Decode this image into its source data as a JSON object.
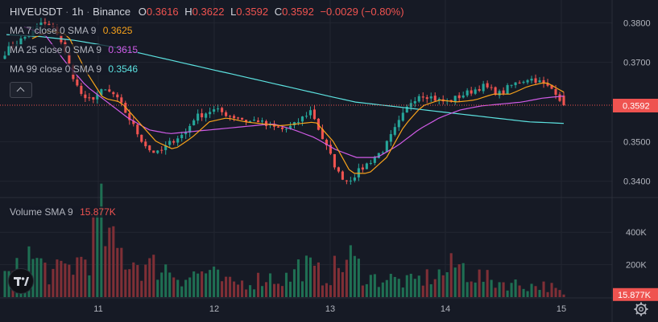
{
  "header": {
    "symbol": "HIVEUSDT",
    "sep1": "·",
    "interval": "1h",
    "sep2": "·",
    "exchange": "Binance",
    "open_label": "O",
    "open_value": "0.3616",
    "high_label": "H",
    "high_value": "0.3622",
    "low_label": "L",
    "low_value": "0.3592",
    "close_label": "C",
    "close_value": "0.3592",
    "change_value": "−0.0029 (−0.80%)"
  },
  "indicators": [
    {
      "label": "MA 7 close 0 SMA 9",
      "value": "0.3625",
      "color": "#F7A21B"
    },
    {
      "label": "MA 25 close 0 SMA 9",
      "value": "0.3615",
      "color": "#D05BE6"
    },
    {
      "label": "MA 99 close 0 SMA 9",
      "value": "0.3546",
      "color": "#5CE2E0"
    }
  ],
  "volume_indicator": {
    "label": "Volume SMA 9",
    "value": "15.877K",
    "color": "#EF5350"
  },
  "colors": {
    "up": "#26A69A",
    "down": "#EF5350",
    "up_volume": "#1F6F53",
    "down_volume": "#7F2F36",
    "grid": "#222631",
    "text": "#B2B5BE",
    "background": "#161A25"
  },
  "icons": {
    "collapse": "chevron-up-icon",
    "logo": "tradingview-logo-icon",
    "settings": "gear-icon"
  },
  "chart_data": {
    "type": "candlestick",
    "x_ticks": [
      "11",
      "12",
      "13",
      "14",
      "15"
    ],
    "price_ticks": [
      "0.3800",
      "0.3700",
      "0.3500",
      "0.3400"
    ],
    "price_range": [
      0.3365,
      0.3825
    ],
    "volume_ticks": [
      "400K",
      "200K"
    ],
    "volume_range": [
      0,
      520000
    ],
    "last_price_label": "0.3592",
    "last_volume_label": "15.877K",
    "price_anchors": [
      0.3725,
      0.3745,
      0.376,
      0.3775,
      0.38,
      0.379,
      0.377,
      0.37,
      0.364,
      0.36,
      0.3615,
      0.363,
      0.362,
      0.359,
      0.355,
      0.351,
      0.348,
      0.347,
      0.349,
      0.351,
      0.352,
      0.356,
      0.357,
      0.358,
      0.3575,
      0.3565,
      0.356,
      0.355,
      0.3555,
      0.354,
      0.3535,
      0.353,
      0.354,
      0.356,
      0.358,
      0.352,
      0.347,
      0.342,
      0.34,
      0.342,
      0.344,
      0.346,
      0.348,
      0.352,
      0.356,
      0.36,
      0.362,
      0.3615,
      0.3605,
      0.36,
      0.361,
      0.362,
      0.363,
      0.364,
      0.363,
      0.362,
      0.364,
      0.365,
      0.366,
      0.3655,
      0.364,
      0.363,
      0.3592
    ],
    "ma7_anchors": [
      0.376,
      0.378,
      0.377,
      0.368,
      0.361,
      0.36,
      0.355,
      0.35,
      0.348,
      0.351,
      0.355,
      0.356,
      0.355,
      0.3545,
      0.354,
      0.3545,
      0.355,
      0.35,
      0.342,
      0.342,
      0.346,
      0.354,
      0.359,
      0.3605,
      0.36,
      0.3605,
      0.362,
      0.362,
      0.364,
      0.365,
      0.3625
    ],
    "ma25_anchors": [
      0.379,
      0.377,
      0.37,
      0.364,
      0.36,
      0.356,
      0.353,
      0.352,
      0.3525,
      0.353,
      0.3535,
      0.354,
      0.3545,
      0.353,
      0.351,
      0.348,
      0.346,
      0.346,
      0.349,
      0.353,
      0.356,
      0.358,
      0.359,
      0.3595,
      0.36,
      0.361,
      0.3615
    ],
    "ma99_anchors": [
      0.377,
      0.3765,
      0.3755,
      0.374,
      0.372,
      0.37,
      0.368,
      0.366,
      0.364,
      0.362,
      0.36,
      0.359,
      0.358,
      0.357,
      0.356,
      0.355,
      0.3546
    ],
    "volume_anchors": [
      120000,
      160000,
      250000,
      200000,
      140000,
      170000,
      210000,
      260000,
      480000,
      300000,
      260000,
      220000,
      180000,
      200000,
      160000,
      120000,
      140000,
      160000,
      110000,
      80000,
      90000,
      100000,
      130000,
      110000,
      120000,
      210000,
      150000,
      130000,
      180000,
      240000,
      160000,
      110000,
      120000,
      100000,
      90000,
      110000,
      130000,
      150000,
      200000,
      160000,
      120000,
      100000,
      90000,
      80000,
      70000,
      75000,
      60000,
      15877
    ]
  }
}
